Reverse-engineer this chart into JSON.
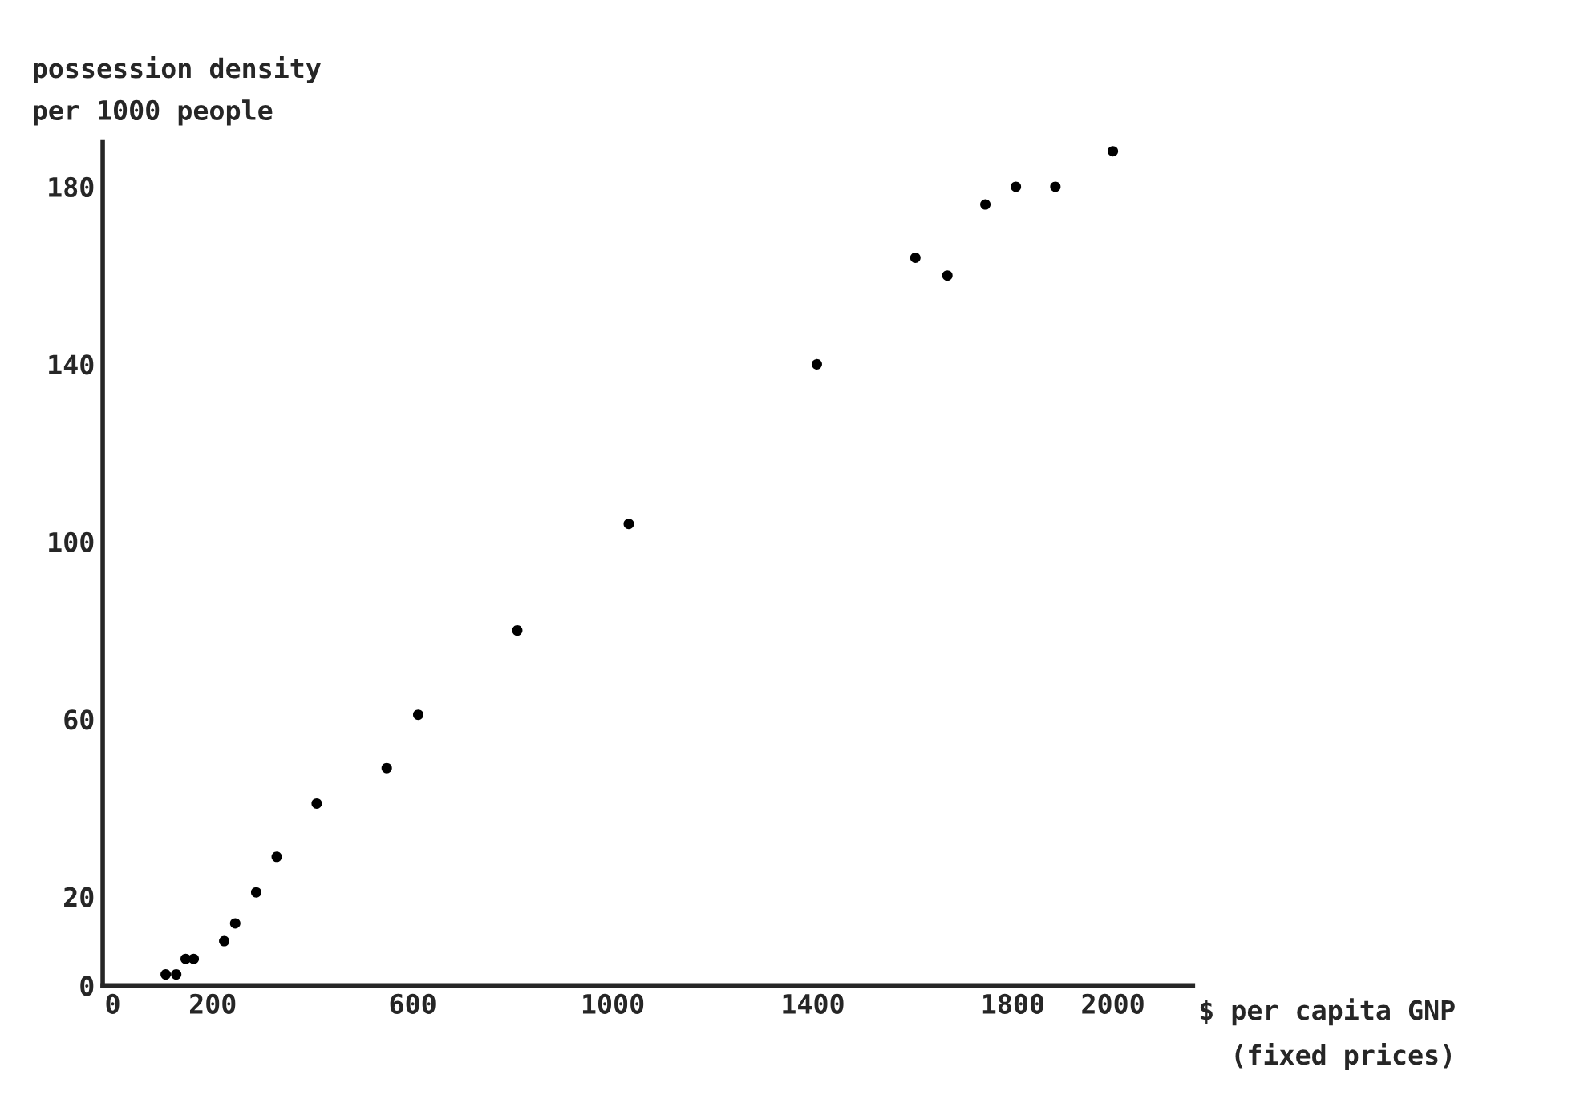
{
  "chart_data": {
    "type": "scatter",
    "xlabel": "$ per capita GNP\n(fixed prices)",
    "ylabel": "possession density\nper 1000 people",
    "x": [
      106,
      127,
      146,
      162,
      223,
      245,
      287,
      328,
      408,
      548,
      611,
      809,
      1032,
      1408,
      1605,
      1669,
      1745,
      1806,
      1885,
      2000
    ],
    "series": [
      {
        "color": "#000000",
        "values": [
          2.5,
          2.5,
          6,
          6,
          10,
          14,
          21,
          29,
          41,
          49,
          61,
          80,
          104,
          140,
          164,
          160,
          176,
          180,
          180,
          188
        ]
      }
    ],
    "xlim": [
      -20,
      2160
    ],
    "ylim": [
      0,
      190
    ],
    "xticks": [
      0,
      200,
      600,
      1000,
      1400,
      1800,
      2000
    ],
    "yticks": [
      0,
      20,
      60,
      100,
      140,
      180
    ],
    "grid": false,
    "legend": false,
    "marker": "circle"
  }
}
